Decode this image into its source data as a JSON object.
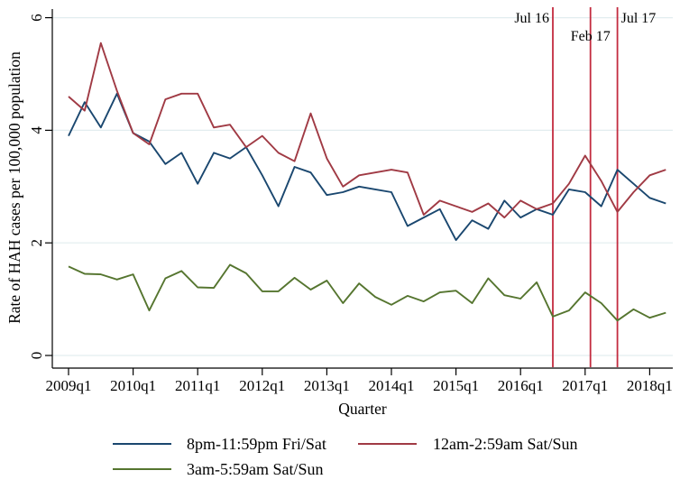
{
  "chart_data": {
    "type": "line",
    "title": "",
    "xlabel": "Quarter",
    "ylabel": "Rate of HAH cases per 100,000 population",
    "ylim": [
      0,
      6
    ],
    "y_ticks": [
      0,
      2,
      4,
      6
    ],
    "x_tick_labels": [
      "2009q1",
      "2010q1",
      "2011q1",
      "2012q1",
      "2013q1",
      "2014q1",
      "2015q1",
      "2016q1",
      "2017q1",
      "2018q1"
    ],
    "quarters": [
      "2009q1",
      "2009q2",
      "2009q3",
      "2009q4",
      "2010q1",
      "2010q2",
      "2010q3",
      "2010q4",
      "2011q1",
      "2011q2",
      "2011q3",
      "2011q4",
      "2012q1",
      "2012q2",
      "2012q3",
      "2012q4",
      "2013q1",
      "2013q2",
      "2013q3",
      "2013q4",
      "2014q1",
      "2014q2",
      "2014q3",
      "2014q4",
      "2015q1",
      "2015q2",
      "2015q3",
      "2015q4",
      "2016q1",
      "2016q2",
      "2016q3",
      "2016q4",
      "2017q1",
      "2017q2",
      "2017q3",
      "2017q4",
      "2018q1",
      "2018q2"
    ],
    "grid": true,
    "legend_position": "bottom",
    "series": [
      {
        "name": "8pm-11:59pm Fri/Sat",
        "color": "#1a476f",
        "values": [
          3.9,
          4.5,
          4.05,
          4.65,
          3.95,
          3.8,
          3.4,
          3.6,
          3.05,
          3.6,
          3.5,
          3.7,
          3.2,
          2.65,
          3.35,
          3.25,
          2.85,
          2.9,
          3.0,
          2.95,
          2.9,
          2.3,
          2.45,
          2.6,
          2.05,
          2.4,
          2.25,
          2.75,
          2.45,
          2.6,
          2.5,
          2.95,
          2.9,
          2.65,
          3.3,
          3.05,
          2.8,
          2.7
        ]
      },
      {
        "name": "12am-2:59am Sat/Sun",
        "color": "#a03a44",
        "values": [
          4.6,
          4.35,
          5.55,
          4.7,
          3.95,
          3.75,
          4.55,
          4.65,
          4.65,
          4.05,
          4.1,
          3.7,
          3.9,
          3.6,
          3.45,
          4.3,
          3.5,
          3.0,
          3.2,
          3.25,
          3.3,
          3.25,
          2.5,
          2.75,
          2.65,
          2.55,
          2.7,
          2.45,
          2.75,
          2.6,
          2.7,
          3.05,
          3.55,
          3.1,
          2.55,
          2.9,
          3.2,
          3.3
        ]
      },
      {
        "name": "3am-5:59am Sat/Sun",
        "color": "#55752f",
        "values": [
          1.58,
          1.45,
          1.44,
          1.35,
          1.44,
          0.8,
          1.37,
          1.5,
          1.21,
          1.2,
          1.61,
          1.46,
          1.14,
          1.14,
          1.38,
          1.17,
          1.33,
          0.93,
          1.28,
          1.04,
          0.9,
          1.06,
          0.96,
          1.12,
          1.15,
          0.93,
          1.37,
          1.07,
          1.01,
          1.3,
          0.69,
          0.8,
          1.12,
          0.93,
          0.62,
          0.82,
          0.67,
          0.76
        ]
      }
    ],
    "reference_lines": [
      {
        "label": "Jul 16",
        "quarter": "2016q3",
        "quarter_index": 30,
        "color": "#c32b3f",
        "anchor": "end",
        "row": 1
      },
      {
        "label": "Feb 17",
        "quarter": "2017q1",
        "quarter_index": 32.33,
        "color": "#c32b3f",
        "anchor": "middle",
        "row": 2
      },
      {
        "label": "Jul 17",
        "quarter": "2017q3",
        "quarter_index": 34,
        "color": "#c32b3f",
        "anchor": "start",
        "row": 1
      }
    ],
    "gridline_color": "#e2edef",
    "axis_color": "#000000"
  }
}
